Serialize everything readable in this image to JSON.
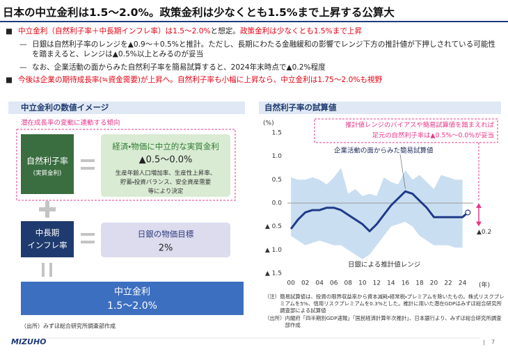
{
  "title": "日本の中立金利は1.5～2.0%。政策金利は少なくとも1.5%まで上昇する公算大",
  "bullets": [
    {
      "marker": "■",
      "level": 1,
      "parts": [
        {
          "text": "中立金利（自然利子率＋中長期インフレ率）は1.5～2.0%",
          "color": "#e60012"
        },
        {
          "text": "と想定。",
          "color": "#222222"
        },
        {
          "text": "政策金利は少なくとも1.5%まで上昇",
          "color": "#e60012"
        }
      ]
    },
    {
      "marker": "—",
      "level": 2,
      "parts": [
        {
          "text": "日銀は自然利子率のレンジを▲0.9～＋0.5%と推計。ただし、長期にわたる金融緩和の影響でレンジ下方の推計値が下押しされている可能性を踏まえると、レンジは▲0.5%以上とみるのが妥当",
          "color": "#222222"
        }
      ]
    },
    {
      "marker": "—",
      "level": 2,
      "parts": [
        {
          "text": "なお、企業活動の面からみた自然利子率を簡易試算すると、2024年末時点で▲0.2%程度",
          "color": "#222222"
        }
      ]
    },
    {
      "marker": "■",
      "level": 1,
      "parts": [
        {
          "text": "今後は企業の期待成長率(≒資金需要)が上昇へ。自然利子率も小幅に上昇なら、中立金利は1.75～2.0%も視野",
          "color": "#e60012"
        }
      ]
    }
  ],
  "diagram": {
    "heading": "中立金利の数値イメージ",
    "bracket_label": "潜在成長率の変動に連動する傾向",
    "natural_rate": {
      "title": "自然利子率",
      "subtitle": "(実質金利)"
    },
    "natural_rate_desc": {
      "title": "経済・物価に中立的な実質金利",
      "value": "▲0.5～0.0%",
      "lines": [
        "生産年齢人口増加率、生産性上昇率、",
        "貯蓄・投資バランス、安全資産需要",
        "等により決定"
      ]
    },
    "inflation": {
      "lines": [
        "中長期",
        "インフレ率"
      ]
    },
    "inflation_desc": {
      "title": "日銀の物価目標",
      "value": "2%"
    },
    "result": {
      "title": "中立金利",
      "value": "1.5～2.0%"
    },
    "source": "（出所）みずほ総合研究所調査部作成"
  },
  "chart_data": {
    "type": "line",
    "title": "自然利子率の試算値",
    "y_unit": "(%)",
    "x_unit": "(年)",
    "xlim": [
      1999.5,
      2025.5
    ],
    "xticks": [
      {
        "value": 2000,
        "label": "00"
      },
      {
        "value": 2002,
        "label": "02"
      },
      {
        "value": 2004,
        "label": "04"
      },
      {
        "value": 2006,
        "label": "06"
      },
      {
        "value": 2008,
        "label": "08"
      },
      {
        "value": 2010,
        "label": "10"
      },
      {
        "value": 2012,
        "label": "12"
      },
      {
        "value": 2014,
        "label": "14"
      },
      {
        "value": 2016,
        "label": "16"
      },
      {
        "value": 2018,
        "label": "18"
      },
      {
        "value": 2020,
        "label": "20"
      },
      {
        "value": 2022,
        "label": "22"
      },
      {
        "value": 2024,
        "label": "24"
      }
    ],
    "ylim": [
      -1.5,
      1.5
    ],
    "yticks": [
      1.5,
      {
        "value": 1,
        "label": "1.0"
      },
      0.5,
      {
        "value": 0,
        "label": "0.0"
      },
      {
        "value": -0.5,
        "label": "▲ 0.5"
      },
      {
        "value": -1,
        "label": "▲ 1.0"
      },
      {
        "value": -1.5,
        "label": "▲ 1.5"
      }
    ],
    "band": {
      "name": "日銀による推計値レンジ",
      "color": "#c9def1",
      "x": [
        2000,
        2001,
        2002,
        2003,
        2004,
        2005,
        2006,
        2007,
        2008,
        2009,
        2010,
        2011,
        2012,
        2013,
        2014,
        2015,
        2016,
        2017,
        2018,
        2019,
        2020,
        2021,
        2022,
        2023,
        2024
      ],
      "upper": [
        0.55,
        0.5,
        0.5,
        0.55,
        0.5,
        0.4,
        0.55,
        0.75,
        0.2,
        0.3,
        0.15,
        0.2,
        0.15,
        0.55,
        0.45,
        0.4,
        0.7,
        0.5,
        0.6,
        0.45,
        0.3,
        0.6,
        0.55,
        0.5,
        0.5
      ],
      "lower": [
        -0.7,
        -0.8,
        -0.9,
        -0.85,
        -0.8,
        -0.85,
        -0.9,
        -0.9,
        -1.0,
        -1.1,
        -1.2,
        -1.1,
        -0.9,
        -0.7,
        -0.5,
        -0.45,
        -0.4,
        -0.5,
        -0.7,
        -0.8,
        -0.9,
        -0.9,
        -0.9,
        -0.95,
        -0.95
      ]
    },
    "series": [
      {
        "name": "企業活動の面からみた簡易試算値",
        "color": "#1f3a8a",
        "x": [
          2000,
          2001,
          2002,
          2003,
          2004,
          2005,
          2006,
          2007,
          2008,
          2009,
          2010,
          2011,
          2012,
          2013,
          2014,
          2015,
          2016,
          2017,
          2018,
          2019,
          2020,
          2021,
          2022,
          2023,
          2024,
          2024.75
        ],
        "values": [
          -0.55,
          -0.35,
          -0.2,
          -0.15,
          -0.15,
          -0.1,
          -0.1,
          -0.15,
          -0.25,
          -0.35,
          -0.45,
          -0.6,
          -0.45,
          -0.25,
          -0.05,
          0.1,
          0.25,
          0.2,
          0.05,
          -0.1,
          -0.3,
          -0.3,
          -0.3,
          -0.3,
          -0.3,
          -0.2
        ]
      }
    ],
    "annotation": [
      "推計値レンジのバイアスや簡易試算値を踏まえれば",
      "足元の自然利子率は▲0.5%～0.0%が妥当"
    ],
    "end_label": "▲0.2",
    "notes": [
      {
        "label": "（注）",
        "text": "簡易試算値は、投資の限界収益率から資本減耗・経常税・プレミアムを除いたもの。株式リスクプレミアムを5%、信用リスクプレミアムを0.3%とした。推計に用いた潜在GDPはみずほ総合研究所調査部による試算値"
      },
      {
        "label": "（出所）",
        "text": "内閣府「四半期別GDP速報」「国民経済計算年次推計」、日本銀行より、みずほ総合研究所調査部作成"
      }
    ]
  },
  "footer": {
    "logo": "MIZUHO",
    "page": 7
  }
}
